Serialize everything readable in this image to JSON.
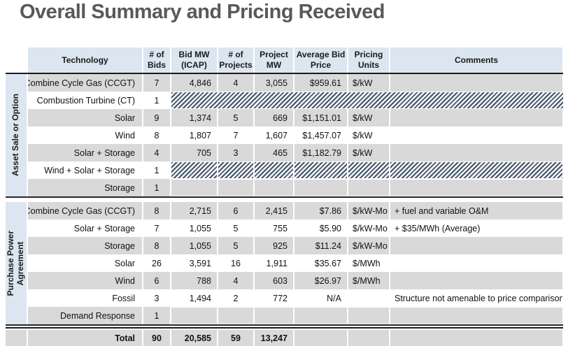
{
  "title": "Overall Summary and Pricing Received",
  "table": {
    "columns": [
      "Technology",
      "# of\nBids",
      "Bid MW\n(ICAP)",
      "# of\nProjects",
      "Project\nMW",
      "Average Bid\nPrice",
      "Pricing\nUnits",
      "Comments"
    ],
    "sections": [
      {
        "label": "Asset Sale or Option",
        "rows": [
          {
            "technology": "Combine Cycle Gas (CCGT)",
            "bids": "7",
            "bid_mw": "4,846",
            "projects": "4",
            "project_mw": "3,055",
            "avg_price": "$959.61",
            "units": "$/kW",
            "comments": "",
            "hatched": false
          },
          {
            "technology": "Combustion Turbine (CT)",
            "bids": "1",
            "hatched": true,
            "hatch_merged": true
          },
          {
            "technology": "Solar",
            "bids": "9",
            "bid_mw": "1,374",
            "projects": "5",
            "project_mw": "669",
            "avg_price": "$1,151.01",
            "units": "$/kW",
            "comments": "",
            "hatched": false
          },
          {
            "technology": "Wind",
            "bids": "8",
            "bid_mw": "1,807",
            "projects": "7",
            "project_mw": "1,607",
            "avg_price": "$1,457.07",
            "units": "$/kW",
            "comments": "",
            "hatched": false
          },
          {
            "technology": "Solar + Storage",
            "bids": "4",
            "bid_mw": "705",
            "projects": "3",
            "project_mw": "465",
            "avg_price": "$1,182.79",
            "units": "$/kW",
            "comments": "",
            "hatched": false
          },
          {
            "technology": "Wind + Solar + Storage",
            "bids": "1",
            "hatched": true,
            "hatch_merged": false
          },
          {
            "technology": "Storage",
            "bids": "1",
            "hatched": true,
            "hatch_merged": false
          }
        ]
      },
      {
        "label": "Purchase Power\nAgreement",
        "rows": [
          {
            "technology": "Combine Cycle Gas (CCGT)",
            "bids": "8",
            "bid_mw": "2,715",
            "projects": "6",
            "project_mw": "2,415",
            "avg_price": "$7.86",
            "units": "$/kW-Mo",
            "comments": "+ fuel and variable O&M",
            "hatched": false
          },
          {
            "technology": "Solar + Storage",
            "bids": "7",
            "bid_mw": "1,055",
            "projects": "5",
            "project_mw": "755",
            "avg_price": "$5.90",
            "units": "$/kW-Mo",
            "comments": "+ $35/MWh (Average)",
            "hatched": false
          },
          {
            "technology": "Storage",
            "bids": "8",
            "bid_mw": "1,055",
            "projects": "5",
            "project_mw": "925",
            "avg_price": "$11.24",
            "units": "$/kW-Mo",
            "comments": "",
            "hatched": false
          },
          {
            "technology": "Solar",
            "bids": "26",
            "bid_mw": "3,591",
            "projects": "16",
            "project_mw": "1,911",
            "avg_price": "$35.67",
            "units": "$/MWh",
            "comments": "",
            "hatched": false
          },
          {
            "technology": "Wind",
            "bids": "6",
            "bid_mw": "788",
            "projects": "4",
            "project_mw": "603",
            "avg_price": "$26.97",
            "units": "$/MWh",
            "comments": "",
            "hatched": false
          },
          {
            "technology": "Fossil",
            "bids": "3",
            "bid_mw": "1,494",
            "projects": "2",
            "project_mw": "772",
            "avg_price": "N/A",
            "units": "",
            "comments": "Structure not amenable to price comparison",
            "hatched": false
          },
          {
            "technology": "Demand Response",
            "bids": "1",
            "hatched": true,
            "hatch_merged": false
          }
        ]
      }
    ],
    "total": {
      "label": "Total",
      "bids": "90",
      "bid_mw": "20,585",
      "projects": "59",
      "project_mw": "13,247"
    }
  },
  "colors": {
    "header_bg": "#dce6f1",
    "section_label_bg": "#dce6f1",
    "row_alt_bg": "#d9d9d9",
    "hatch_stripe": "#44546a",
    "title_text": "#595959",
    "border": "#1a1a1a"
  }
}
